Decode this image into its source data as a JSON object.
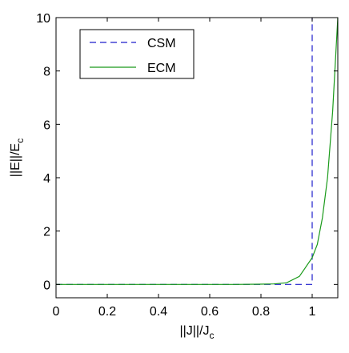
{
  "chart_data": {
    "type": "line",
    "title": "",
    "xlabel": "||J||/J",
    "xlabel_sub": "c",
    "ylabel": "||E||/E",
    "ylabel_sub": "c",
    "xlim": [
      0,
      1.1
    ],
    "ylim": [
      -0.5,
      10
    ],
    "xticks": [
      0,
      0.2,
      0.4,
      0.6,
      0.8,
      1
    ],
    "xtick_labels": [
      "0",
      "0.2",
      "0.4",
      "0.6",
      "0.8",
      "1"
    ],
    "yticks": [
      0,
      2,
      4,
      6,
      8,
      10
    ],
    "ytick_labels": [
      "0",
      "2",
      "4",
      "6",
      "8",
      "10"
    ],
    "grid": false,
    "legend_position": "top-left",
    "series": [
      {
        "name": "CSM",
        "color": "#1f1fcc",
        "style": "dashed",
        "x": [
          0,
          1,
          1,
          1
        ],
        "y": [
          0,
          0,
          1,
          10
        ]
      },
      {
        "name": "ECM",
        "color": "#1a9a1a",
        "style": "solid",
        "x": [
          0,
          0.2,
          0.4,
          0.6,
          0.7,
          0.8,
          0.85,
          0.9,
          0.95,
          1.0,
          1.02,
          1.04,
          1.06,
          1.08,
          1.1
        ],
        "y": [
          0,
          0,
          0,
          0,
          0,
          0.01,
          0.02,
          0.06,
          0.3,
          1.0,
          1.5,
          2.5,
          4.0,
          6.5,
          10.0
        ]
      }
    ]
  }
}
